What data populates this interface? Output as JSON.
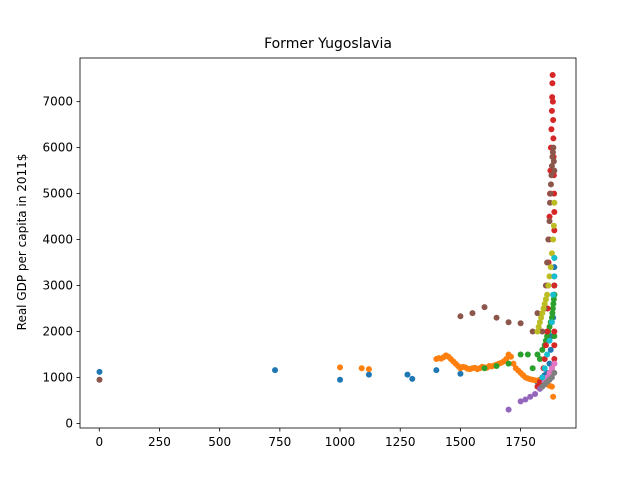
{
  "chart_data": {
    "type": "scatter",
    "title": "Former Yugoslavia",
    "xlabel": "",
    "ylabel": "Real GDP per capita in 2011$",
    "xlim": [
      -80,
      1980
    ],
    "ylim": [
      -100,
      7950
    ],
    "xticks": [
      0,
      250,
      500,
      750,
      1000,
      1250,
      1500,
      1750
    ],
    "yticks": [
      0,
      1000,
      2000,
      3000,
      4000,
      5000,
      6000,
      7000
    ],
    "grid": false,
    "legend": "none",
    "series": [
      {
        "color": "#1f77b4",
        "x": [
          1,
          730,
          1000,
          1120,
          1280,
          1300,
          1400,
          1500,
          1820,
          1830,
          1840,
          1850,
          1860,
          1870,
          1875,
          1880,
          1885,
          1890,
          1890,
          1890,
          1890,
          1890
        ],
        "y": [
          1120,
          1160,
          950,
          1060,
          1060,
          970,
          1160,
          1080,
          900,
          950,
          1000,
          1050,
          1100,
          1300,
          1600,
          1900,
          2300,
          2800,
          3000,
          3200,
          3400,
          3600
        ]
      },
      {
        "color": "#ff7f0e",
        "x": [
          1000,
          1090,
          1120,
          1400,
          1410,
          1420,
          1430,
          1440,
          1450,
          1460,
          1470,
          1480,
          1490,
          1500,
          1510,
          1520,
          1530,
          1540,
          1550,
          1560,
          1570,
          1580,
          1590,
          1600,
          1610,
          1620,
          1630,
          1640,
          1650,
          1660,
          1670,
          1680,
          1690,
          1700,
          1710,
          1720,
          1730,
          1740,
          1750,
          1760,
          1770,
          1780,
          1790,
          1800,
          1810,
          1820,
          1830,
          1840,
          1850,
          1860,
          1870,
          1880,
          1885
        ],
        "y": [
          1220,
          1200,
          1180,
          1400,
          1420,
          1410,
          1440,
          1480,
          1450,
          1400,
          1350,
          1300,
          1250,
          1200,
          1230,
          1220,
          1190,
          1180,
          1200,
          1210,
          1180,
          1200,
          1230,
          1220,
          1210,
          1250,
          1240,
          1260,
          1280,
          1300,
          1320,
          1350,
          1400,
          1500,
          1450,
          1300,
          1200,
          1150,
          1100,
          1050,
          1000,
          980,
          960,
          950,
          940,
          930,
          950,
          980,
          900,
          850,
          820,
          800,
          580
        ]
      },
      {
        "color": "#2ca02c",
        "x": [
          1600,
          1650,
          1700,
          1750,
          1780,
          1800,
          1820,
          1830,
          1840,
          1850,
          1855,
          1860,
          1865,
          1870,
          1875,
          1880,
          1882,
          1884,
          1886,
          1888,
          1890,
          1890
        ],
        "y": [
          1200,
          1250,
          1300,
          1500,
          1500,
          1200,
          1500,
          1400,
          1600,
          1700,
          1800,
          1900,
          2000,
          2100,
          2200,
          2300,
          2400,
          2500,
          2600,
          2700,
          2800,
          1900
        ]
      },
      {
        "color": "#d62728",
        "x": [
          1820,
          1830,
          1840,
          1845,
          1850,
          1855,
          1860,
          1862,
          1864,
          1866,
          1868,
          1870,
          1872,
          1874,
          1876,
          1878,
          1880,
          1881,
          1882,
          1883,
          1884,
          1885,
          1886,
          1887,
          1888,
          1889,
          1890,
          1890,
          1890,
          1890,
          1890,
          1890
        ],
        "y": [
          800,
          900,
          1000,
          1200,
          1400,
          1700,
          2000,
          2500,
          3000,
          3500,
          4000,
          4500,
          5000,
          5500,
          6000,
          6400,
          6800,
          7100,
          7400,
          7580,
          7000,
          6600,
          6200,
          5800,
          5400,
          5000,
          4600,
          4200,
          3000,
          2000,
          1700,
          1400
        ]
      },
      {
        "color": "#9467bd",
        "x": [
          1700,
          1750,
          1770,
          1790,
          1810,
          1830,
          1850,
          1870,
          1880,
          1890
        ],
        "y": [
          300,
          480,
          520,
          580,
          640,
          750,
          900,
          1100,
          1200,
          1300
        ]
      },
      {
        "color": "#8c564b",
        "x": [
          1,
          1500,
          1550,
          1600,
          1650,
          1700,
          1750,
          1800,
          1820,
          1840,
          1850,
          1855,
          1860,
          1865,
          1870,
          1872,
          1874,
          1876,
          1878,
          1880,
          1882,
          1884,
          1886,
          1888,
          1890
        ],
        "y": [
          950,
          2330,
          2400,
          2530,
          2300,
          2200,
          2180,
          2000,
          2400,
          2000,
          2500,
          3000,
          3500,
          4000,
          4400,
          4800,
          5000,
          5200,
          5400,
          5600,
          5800,
          5900,
          6000,
          5700,
          5500
        ]
      },
      {
        "color": "#e377c2",
        "x": [
          1850,
          1860,
          1870,
          1880,
          1890
        ],
        "y": [
          900,
          1000,
          1100,
          1200,
          1300
        ]
      },
      {
        "color": "#7f7f7f",
        "x": [
          1840,
          1850,
          1860,
          1870,
          1880,
          1890
        ],
        "y": [
          800,
          850,
          900,
          950,
          1000,
          1100
        ]
      },
      {
        "color": "#bcbd22",
        "x": [
          1820,
          1825,
          1830,
          1835,
          1840,
          1845,
          1850,
          1855,
          1860,
          1865,
          1870,
          1875,
          1880,
          1885,
          1888,
          1890
        ],
        "y": [
          2000,
          2100,
          2200,
          2300,
          2400,
          2500,
          2600,
          2700,
          2800,
          3000,
          3200,
          3400,
          3700,
          4000,
          4300,
          4800
        ]
      },
      {
        "color": "#17becf",
        "x": [
          1840,
          1850,
          1860,
          1870,
          1880,
          1885,
          1890,
          1890
        ],
        "y": [
          1000,
          1200,
          1500,
          1800,
          2200,
          2800,
          3600,
          3200
        ]
      }
    ]
  }
}
